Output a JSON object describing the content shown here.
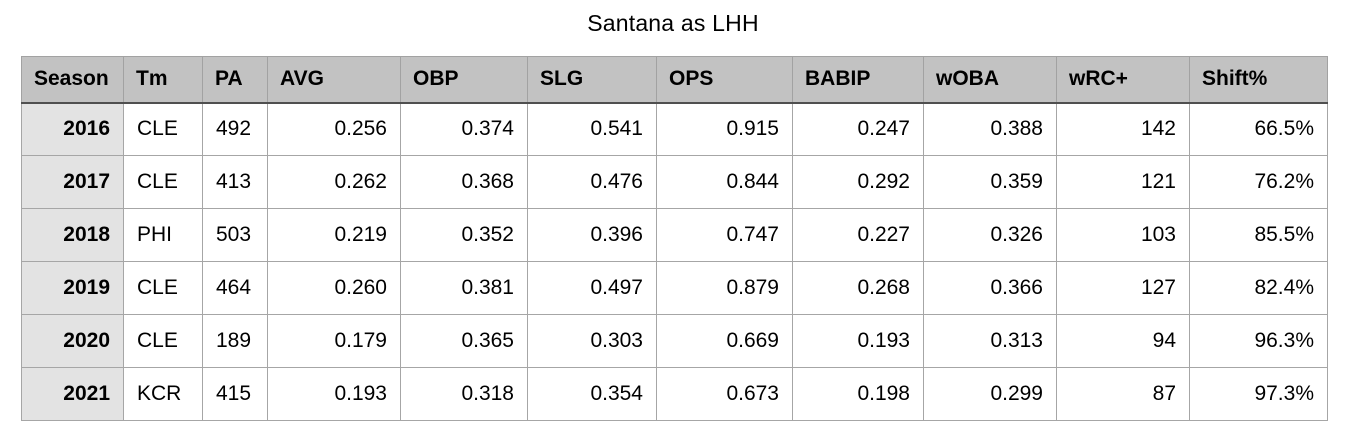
{
  "title": "Santana as LHH",
  "chart_data": {
    "type": "table",
    "title": "Santana as LHH",
    "columns": [
      "Season",
      "Tm",
      "PA",
      "AVG",
      "OBP",
      "SLG",
      "OPS",
      "BABIP",
      "wOBA",
      "wRC+",
      "Shift%"
    ],
    "rows": [
      [
        "2016",
        "CLE",
        "492",
        "0.256",
        "0.374",
        "0.541",
        "0.915",
        "0.247",
        "0.388",
        "142",
        "66.5%"
      ],
      [
        "2017",
        "CLE",
        "413",
        "0.262",
        "0.368",
        "0.476",
        "0.844",
        "0.292",
        "0.359",
        "121",
        "76.2%"
      ],
      [
        "2018",
        "PHI",
        "503",
        "0.219",
        "0.352",
        "0.396",
        "0.747",
        "0.227",
        "0.326",
        "103",
        "85.5%"
      ],
      [
        "2019",
        "CLE",
        "464",
        "0.260",
        "0.381",
        "0.497",
        "0.879",
        "0.268",
        "0.366",
        "127",
        "82.4%"
      ],
      [
        "2020",
        "CLE",
        "189",
        "0.179",
        "0.365",
        "0.303",
        "0.669",
        "0.193",
        "0.313",
        "94",
        "96.3%"
      ],
      [
        "2021",
        "KCR",
        "415",
        "0.193",
        "0.318",
        "0.354",
        "0.673",
        "0.198",
        "0.299",
        "87",
        "97.3%"
      ]
    ]
  },
  "colors": {
    "header_bg": "#c2c2c2",
    "season_column_bg": "#e3e3e3",
    "grid_line": "#a6a6a6",
    "header_bottom_border": "#4f4f4f",
    "text": "#000000",
    "background": "#ffffff"
  }
}
